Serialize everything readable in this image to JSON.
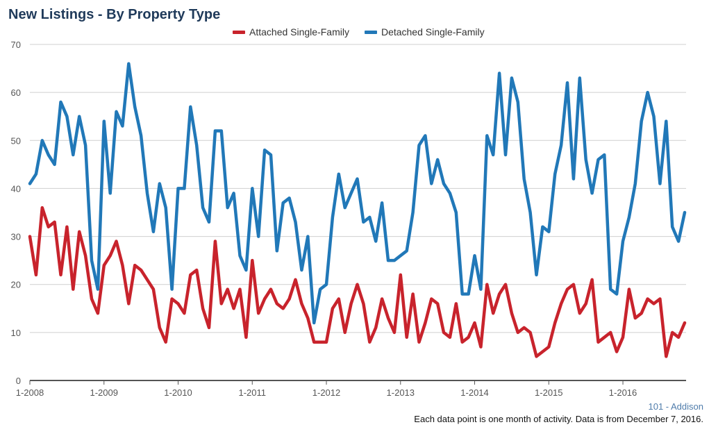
{
  "page": {
    "title": "New Listings - By Property Type",
    "footer_id": "101 - Addison",
    "footer_note": "Each data point is one month of activity. Data is from December 7, 2016."
  },
  "chart_data": {
    "type": "line",
    "title": "New Listings - By Property Type",
    "xlabel": "",
    "ylabel": "",
    "ylim": [
      0,
      70
    ],
    "yticks": [
      0,
      10,
      20,
      30,
      40,
      50,
      60,
      70
    ],
    "x_tick_labels": [
      "1-2008",
      "1-2009",
      "1-2010",
      "1-2011",
      "1-2012",
      "1-2013",
      "1-2014",
      "1-2015",
      "1-2016"
    ],
    "months_per_tick": 12,
    "grid": true,
    "legend_position": "top-center",
    "series": [
      {
        "name": "Attached Single-Family",
        "color": "#c8232c",
        "values": [
          30,
          22,
          36,
          32,
          33,
          22,
          32,
          19,
          31,
          26,
          17,
          14,
          24,
          26,
          29,
          24,
          16,
          24,
          23,
          21,
          19,
          11,
          8,
          17,
          16,
          14,
          22,
          23,
          15,
          11,
          29,
          16,
          19,
          15,
          19,
          9,
          25,
          14,
          17,
          19,
          16,
          15,
          17,
          21,
          16,
          13,
          8,
          8,
          8,
          15,
          17,
          10,
          16,
          20,
          16,
          8,
          11,
          17,
          13,
          10,
          22,
          9,
          18,
          8,
          12,
          17,
          16,
          10,
          9,
          16,
          8,
          9,
          12,
          7,
          20,
          14,
          18,
          20,
          14,
          10,
          11,
          10,
          5,
          6,
          7,
          12,
          16,
          19,
          20,
          14,
          16,
          21,
          8,
          9,
          10,
          6,
          9,
          19,
          13,
          14,
          17,
          16,
          17,
          5,
          10,
          9,
          12
        ]
      },
      {
        "name": "Detached Single-Family",
        "color": "#2178b8",
        "values": [
          41,
          43,
          50,
          47,
          45,
          58,
          55,
          47,
          55,
          49,
          25,
          19,
          54,
          39,
          56,
          53,
          66,
          57,
          51,
          39,
          31,
          41,
          36,
          19,
          40,
          40,
          57,
          49,
          36,
          33,
          52,
          52,
          36,
          39,
          26,
          23,
          40,
          30,
          48,
          47,
          27,
          37,
          38,
          33,
          23,
          30,
          12,
          19,
          20,
          34,
          43,
          36,
          39,
          42,
          33,
          34,
          29,
          37,
          25,
          25,
          26,
          27,
          35,
          49,
          51,
          41,
          46,
          41,
          39,
          35,
          18,
          18,
          26,
          19,
          51,
          47,
          64,
          47,
          63,
          58,
          42,
          35,
          22,
          32,
          31,
          43,
          49,
          62,
          42,
          63,
          46,
          39,
          46,
          47,
          19,
          18,
          29,
          34,
          41,
          54,
          60,
          55,
          41,
          54,
          32,
          29,
          35
        ]
      }
    ]
  }
}
